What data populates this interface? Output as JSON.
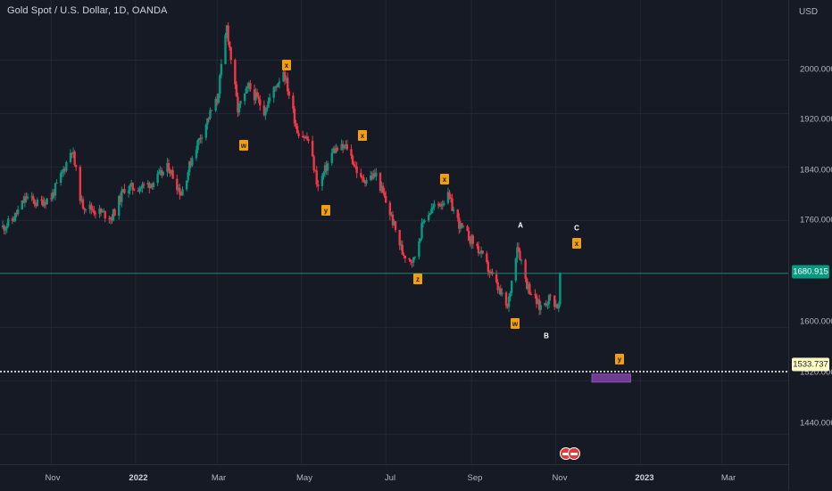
{
  "header": {
    "title": "Gold Spot / U.S. Dollar, 1D, OANDA",
    "currency": "USD"
  },
  "y_axis_labels": [
    "2000.000",
    "1920.000",
    "1840.000",
    "1760.000",
    "1600.000",
    "1520.000",
    "1440.000"
  ],
  "x_axis_labels": [
    "Nov",
    "2022",
    "Mar",
    "May",
    "Jul",
    "Sep",
    "Nov",
    "2023",
    "Mar"
  ],
  "price_tags": {
    "last": "1680.915",
    "alert": "1533.737"
  },
  "colors": {
    "up": "#089981",
    "down": "#f23645",
    "label_box": "#f59e0b",
    "target_zone": "#7b3fa0",
    "last_line": "#089981",
    "alert_line": "#ffffff"
  },
  "wave_labels": [
    "x",
    "w",
    "y",
    "x",
    "x",
    "z",
    "w",
    "A",
    "B",
    "C",
    "x",
    "y"
  ],
  "chart_data": {
    "type": "candlestick",
    "title": "Gold Spot / U.S. Dollar, 1D, OANDA",
    "y_unit": "USD",
    "ylim": [
      1395,
      2090
    ],
    "xlim": [
      "2021-09-25",
      "2023-04-18"
    ],
    "grid": true,
    "close_path": [
      [
        "2021-09-27",
        1750
      ],
      [
        "2021-10-04",
        1760
      ],
      [
        "2021-10-14",
        1795
      ],
      [
        "2021-10-22",
        1785
      ],
      [
        "2021-11-01",
        1795
      ],
      [
        "2021-11-08",
        1825
      ],
      [
        "2021-11-16",
        1868
      ],
      [
        "2021-11-23",
        1785
      ],
      [
        "2021-12-03",
        1775
      ],
      [
        "2021-12-15",
        1765
      ],
      [
        "2021-12-24",
        1808
      ],
      [
        "2022-01-05",
        1810
      ],
      [
        "2022-01-14",
        1818
      ],
      [
        "2022-01-25",
        1840
      ],
      [
        "2022-02-03",
        1800
      ],
      [
        "2022-02-12",
        1862
      ],
      [
        "2022-02-24",
        1920
      ],
      [
        "2022-03-01",
        1940
      ],
      [
        "2022-03-08",
        2050
      ],
      [
        "2022-03-16",
        1925
      ],
      [
        "2022-03-24",
        1960
      ],
      [
        "2022-04-04",
        1925
      ],
      [
        "2022-04-12",
        1960
      ],
      [
        "2022-04-18",
        1985
      ],
      [
        "2022-04-28",
        1895
      ],
      [
        "2022-05-06",
        1880
      ],
      [
        "2022-05-13",
        1810
      ],
      [
        "2022-05-24",
        1865
      ],
      [
        "2022-06-03",
        1870
      ],
      [
        "2022-06-13",
        1820
      ],
      [
        "2022-06-24",
        1828
      ],
      [
        "2022-07-05",
        1765
      ],
      [
        "2022-07-13",
        1712
      ],
      [
        "2022-07-21",
        1700
      ],
      [
        "2022-07-29",
        1765
      ],
      [
        "2022-08-05",
        1780
      ],
      [
        "2022-08-15",
        1795
      ],
      [
        "2022-08-24",
        1750
      ],
      [
        "2022-09-05",
        1720
      ],
      [
        "2022-09-16",
        1675
      ],
      [
        "2022-09-27",
        1628
      ],
      [
        "2022-10-04",
        1725
      ],
      [
        "2022-10-11",
        1665
      ],
      [
        "2022-10-20",
        1630
      ],
      [
        "2022-10-28",
        1645
      ],
      [
        "2022-11-03",
        1630
      ],
      [
        "2022-11-04",
        1680
      ]
    ],
    "last_price": 1680.915,
    "alert_level": 1533.737,
    "target_zone": {
      "from": "2022-11-27",
      "to": "2022-12-25",
      "low": 1518,
      "high": 1530
    },
    "annotations": [
      {
        "text": "x",
        "date": "2022-04-15",
        "price": 2020,
        "style": "box"
      },
      {
        "text": "w",
        "date": "2022-03-12",
        "price": 1918,
        "style": "box"
      },
      {
        "text": "y",
        "date": "2022-05-15",
        "price": 1796,
        "style": "box"
      },
      {
        "text": "x",
        "date": "2022-06-16",
        "price": 1900,
        "style": "box"
      },
      {
        "text": "x",
        "date": "2022-08-19",
        "price": 1840,
        "style": "box"
      },
      {
        "text": "z",
        "date": "2022-07-24",
        "price": 1667,
        "style": "box"
      },
      {
        "text": "w",
        "date": "2022-09-28",
        "price": 1597,
        "style": "box"
      },
      {
        "text": "A",
        "date": "2022-10-05",
        "price": 1751,
        "style": "text"
      },
      {
        "text": "B",
        "date": "2022-10-19",
        "price": 1582,
        "style": "text"
      },
      {
        "text": "C",
        "date": "2022-11-09",
        "price": 1747,
        "style": "text"
      },
      {
        "text": "x",
        "date": "2022-11-09",
        "price": 1728,
        "style": "box"
      },
      {
        "text": "y",
        "date": "2022-12-09",
        "price": 1541,
        "style": "box"
      }
    ]
  }
}
